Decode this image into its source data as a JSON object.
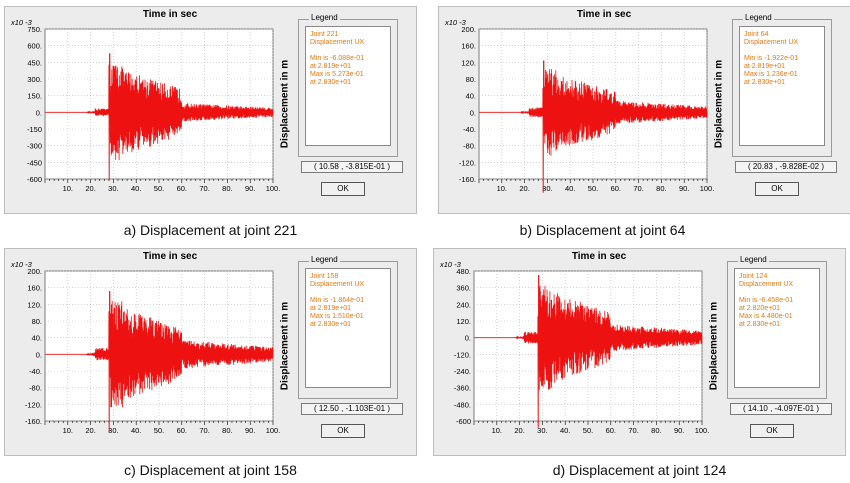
{
  "panels": [
    {
      "caption": "a) Displacement at joint 221",
      "title": "Time in sec",
      "ylabel": "Displacement in m",
      "legend": {
        "title": "Legend",
        "line1": "Joint 221",
        "line2": "Displacement  UX",
        "min": "Min is -6.088e-01",
        "min_at": "at 2.819e+01",
        "max": "Max is 5.273e-01",
        "max_at": "at 2.830e+01"
      },
      "coord": "( 10.58 , -3.815E-01 )",
      "ok": "OK"
    },
    {
      "caption": "b) Displacement at joint 64",
      "title": "Time in sec",
      "ylabel": "Displacement in m",
      "legend": {
        "title": "Legend",
        "line1": "Joint 64",
        "line2": "Displacement  UX",
        "min": "Min is -1.922e-01",
        "min_at": "at 2.819e+01",
        "max": "Max is 1.236e-01",
        "max_at": "at 2.830e+01"
      },
      "coord": "( 20.83 , -9.828E-02 )",
      "ok": "OK"
    },
    {
      "caption": "c) Displacement at joint 158",
      "title": "Time in sec",
      "ylabel": "Displacement in m",
      "legend": {
        "title": "Legend",
        "line1": "Joint 158",
        "line2": "Displacement  UX",
        "min": "Min is -1.864e-01",
        "min_at": "at 2.819e+01",
        "max": "Max is 1.510e-01",
        "max_at": "at 2.830e+01"
      },
      "coord": "( 12.50 , -1.103E-01 )",
      "ok": "OK"
    },
    {
      "caption": "d) Displacement at joint 124",
      "title": "Time in sec",
      "ylabel": "Displacement in m",
      "legend": {
        "title": "Legend",
        "line1": "Joint 124",
        "line2": "Displacement  UX",
        "min": "Min is -6.458e-01",
        "min_at": "at 2.820e+01",
        "max": "Max is 4.480e-01",
        "max_at": "at 2.830e+01"
      },
      "coord": "( 14.10 , -4.097E-01 )",
      "ok": "OK"
    }
  ],
  "chart_data": [
    {
      "type": "line",
      "title": "Time in sec",
      "xlabel": "",
      "ylabel": "Displacement in m",
      "exponent_label": "x10 -3",
      "xlim": [
        0,
        100
      ],
      "ylim": [
        -600,
        750
      ],
      "xticks": [
        "10.",
        "20.",
        "30.",
        "40.",
        "50.",
        "60.",
        "70.",
        "80.",
        "90.",
        "100."
      ],
      "yticks": [
        "750.",
        "600.",
        "450.",
        "300.",
        "150.",
        "0.",
        "-150",
        "-300",
        "-450",
        "-600"
      ],
      "series": [
        {
          "color": "#ee1111",
          "peak_time": 28.2,
          "min": -608.8,
          "max": 527.3,
          "envelope_start": 20,
          "envelope_end": 100,
          "tail_level": 60
        }
      ],
      "grid": true
    },
    {
      "type": "line",
      "title": "Time in sec",
      "xlabel": "",
      "ylabel": "Displacement in m",
      "exponent_label": "x10 -3",
      "xlim": [
        0,
        100
      ],
      "ylim": [
        -160,
        200
      ],
      "xticks": [
        "10.",
        "20.",
        "30.",
        "40.",
        "50.",
        "60.",
        "70.",
        "80.",
        "90.",
        "100."
      ],
      "yticks": [
        "200.",
        "160.",
        "120.",
        "80.",
        "40.",
        "0.",
        "-40.",
        "-80.",
        "-120.",
        "-160."
      ],
      "series": [
        {
          "color": "#ee1111",
          "peak_time": 28.2,
          "min": -192.2,
          "max": 123.6,
          "envelope_start": 20,
          "envelope_end": 100,
          "tail_level": 20
        }
      ],
      "grid": true
    },
    {
      "type": "line",
      "title": "Time in sec",
      "xlabel": "",
      "ylabel": "Displacement in m",
      "exponent_label": "x10 -3",
      "xlim": [
        0,
        100
      ],
      "ylim": [
        -160,
        200
      ],
      "xticks": [
        "10.",
        "20.",
        "30.",
        "40.",
        "50.",
        "60.",
        "70.",
        "80.",
        "90.",
        "100."
      ],
      "yticks": [
        "200.",
        "160.",
        "120.",
        "80.",
        "40.",
        "0.",
        "-40.",
        "-80.",
        "-120.",
        "-160."
      ],
      "series": [
        {
          "color": "#ee1111",
          "peak_time": 28.2,
          "min": -186.4,
          "max": 151.0,
          "envelope_start": 20,
          "envelope_end": 100,
          "tail_level": 25
        }
      ],
      "grid": true
    },
    {
      "type": "line",
      "title": "Time in sec",
      "xlabel": "",
      "ylabel": "Displacement in m",
      "exponent_label": "x10 -3",
      "xlim": [
        0,
        100
      ],
      "ylim": [
        -600,
        480
      ],
      "xticks": [
        "10.",
        "20.",
        "30.",
        "40.",
        "50.",
        "60.",
        "70.",
        "80.",
        "90.",
        "100."
      ],
      "yticks": [
        "480.",
        "360.",
        "240.",
        "120.",
        "0.",
        "-120.",
        "-240.",
        "-360.",
        "-480.",
        "-600"
      ],
      "series": [
        {
          "color": "#ee1111",
          "peak_time": 28.2,
          "min": -645.8,
          "max": 448.0,
          "envelope_start": 20,
          "envelope_end": 100,
          "tail_level": 70
        }
      ],
      "grid": true
    }
  ]
}
